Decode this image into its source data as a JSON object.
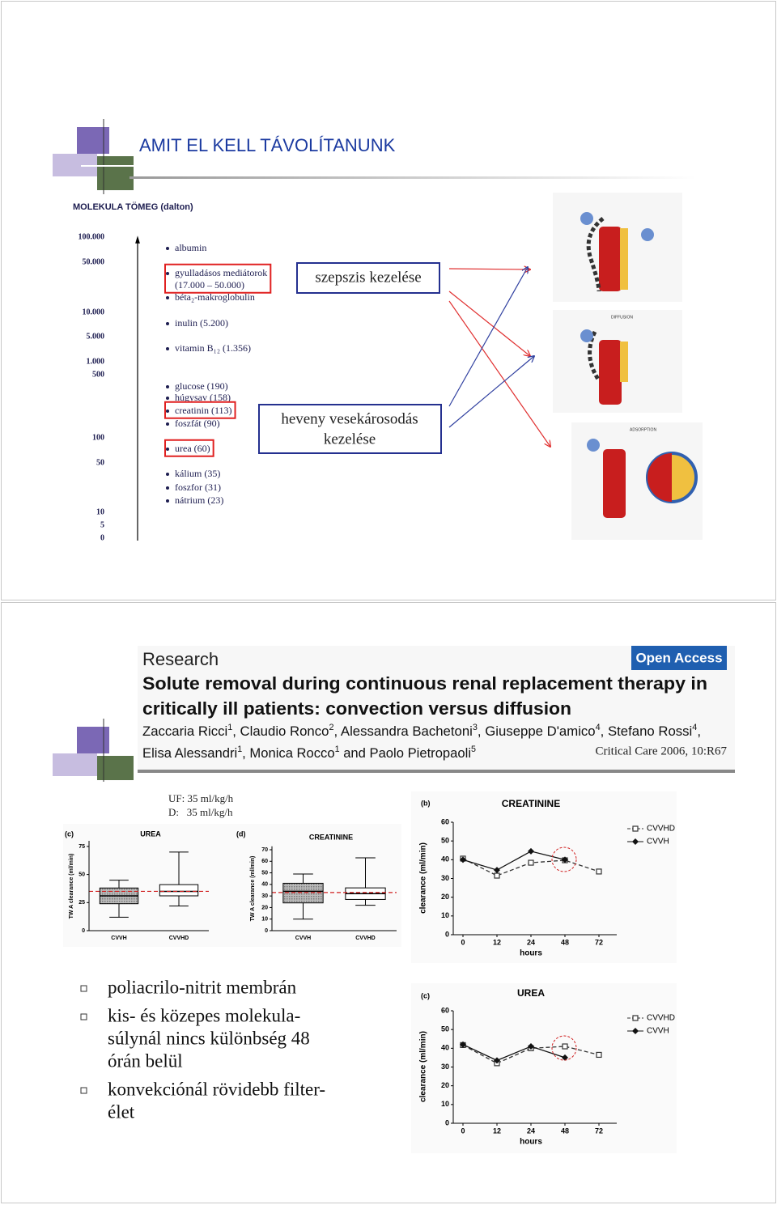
{
  "slide1": {
    "title": "AMIT EL KELL TÁVOLÍTANUNK",
    "scale": {
      "heading": "MOLEKULA TÖMEG (dalton)",
      "ticks": [
        "100.000",
        "50.000",
        "10.000",
        "5.000",
        "1.000",
        "500",
        "100",
        "50",
        "10",
        "5",
        "0"
      ]
    },
    "molecules": [
      {
        "label": "albumin",
        "highlight": false
      },
      {
        "label": "gyulladásos mediátorok",
        "note": "(17.000 – 50.000)",
        "highlight": true
      },
      {
        "label": "béta₂-makroglobulin",
        "highlight": false
      },
      {
        "label": "inulin (5.200)",
        "highlight": false
      },
      {
        "label": "vitamin B₁₂ (1.356)",
        "highlight": false
      },
      {
        "label": "glucose (190)",
        "highlight": false
      },
      {
        "label": "húgysav (158)",
        "highlight": false
      },
      {
        "label": "creatinin (113)",
        "highlight": true
      },
      {
        "label": "foszfát (90)",
        "highlight": false
      },
      {
        "label": "urea (60)",
        "highlight": true
      },
      {
        "label": "kálium (35)",
        "highlight": false
      },
      {
        "label": "foszfor (31)",
        "highlight": false
      },
      {
        "label": "nátrium (23)",
        "highlight": false
      }
    ],
    "boxes": [
      [
        "szepszis kezelése"
      ],
      [
        "heveny vesekárosodás",
        "kezelése"
      ]
    ],
    "panels": [
      "DIFFUSION",
      "ADSORPTION"
    ]
  },
  "slide2": {
    "paper": {
      "section": "Research",
      "badge": "Open Access",
      "title": [
        "Solute removal during continuous renal replacement therapy in",
        "critically ill patients: convection versus diffusion"
      ],
      "authors": [
        [
          {
            "name": "Zaccaria Ricci",
            "affil": "1",
            "sep": ", "
          },
          {
            "name": "Claudio Ronco",
            "affil": "2",
            "sep": ", "
          },
          {
            "name": "Alessandra Bachetoni",
            "affil": "3",
            "sep": ", "
          },
          {
            "name": "Giuseppe D'amico",
            "affil": "4",
            "sep": ", "
          },
          {
            "name": "Stefano Rossi",
            "affil": "4",
            "sep": ","
          }
        ],
        [
          {
            "name": "Elisa Alessandri",
            "affil": "1",
            "sep": ", "
          },
          {
            "name": "Monica Rocco",
            "affil": "1",
            "sep": " and "
          },
          {
            "name": "Paolo Pietropaoli",
            "affil": "5",
            "sep": ""
          }
        ]
      ],
      "citation": "Critical Care 2006, 10:R67"
    },
    "settings": [
      "UF: 35 ml/kg/h",
      "D:   35 ml/kg/h"
    ],
    "charts": [
      {
        "type": "box",
        "panel": "(c)",
        "title": "UREA",
        "ylabel": "TW A clearance (ml/min)",
        "ylim": [
          0,
          80
        ],
        "yticks": [
          0,
          25,
          50,
          75
        ],
        "categories": [
          "CVVH",
          "CVVHD"
        ],
        "whisker_low": [
          12,
          22
        ],
        "q1": [
          24,
          31
        ],
        "median": [
          31,
          35
        ],
        "q3": [
          38,
          41
        ],
        "whisker_high": [
          45,
          70
        ],
        "reference": 35,
        "reference_color": "#d02020"
      },
      {
        "type": "box",
        "panel": "(d)",
        "title": "CREATININE",
        "ylabel": "TW A clearance (ml/min)",
        "ylim": [
          0,
          73
        ],
        "yticks": [
          0,
          10,
          20,
          30,
          40,
          50,
          60,
          70
        ],
        "categories": [
          "CVVH",
          "CVVHD"
        ],
        "whisker_low": [
          10,
          22
        ],
        "q1": [
          24,
          27
        ],
        "median": [
          34,
          32
        ],
        "q3": [
          41,
          37
        ],
        "whisker_high": [
          49,
          63
        ],
        "reference": 33,
        "reference_color": "#d02020"
      },
      {
        "type": "line",
        "panel": "(b)",
        "title": "CREATININE",
        "ylabel": "clearance (ml/min)",
        "xlabel": "hours",
        "categories": [
          "0",
          "12",
          "24",
          "48",
          "72"
        ],
        "ylim": [
          0,
          60
        ],
        "yticks": [
          0,
          10,
          20,
          30,
          40,
          50,
          60
        ],
        "series": [
          {
            "name": "CVVHD",
            "color": "#333333",
            "dashed": true,
            "marker": "square",
            "values": [
              40.6,
              31.5,
              38.4,
              39.7,
              33.7
            ]
          },
          {
            "name": "CVVH",
            "color": "#111111",
            "dashed": false,
            "marker": "diamond",
            "values": [
              40,
              34.5,
              44.5,
              40,
              null
            ]
          }
        ]
      },
      {
        "type": "line",
        "panel": "(c)",
        "title": "UREA",
        "ylabel": "clearance (ml/min)",
        "xlabel": "hours",
        "categories": [
          "0",
          "12",
          "24",
          "48",
          "72"
        ],
        "ylim": [
          0,
          60
        ],
        "yticks": [
          0,
          10,
          20,
          30,
          40,
          50,
          60
        ],
        "series": [
          {
            "name": "CVVHD",
            "color": "#333333",
            "dashed": true,
            "marker": "square",
            "values": [
              41.7,
              32,
              40,
              41,
              36.5
            ]
          },
          {
            "name": "CVVH",
            "color": "#111111",
            "dashed": false,
            "marker": "diamond",
            "values": [
              42,
              33.5,
              41,
              35,
              null
            ]
          }
        ]
      }
    ],
    "bullets": [
      [
        "poliacrilo-nitrit membrán"
      ],
      [
        "kis- és közepes molekula-",
        "súlynál nincs különbség 48",
        "órán belül"
      ],
      [
        "konvekciónál rövidebb filter-",
        "élet"
      ]
    ]
  }
}
